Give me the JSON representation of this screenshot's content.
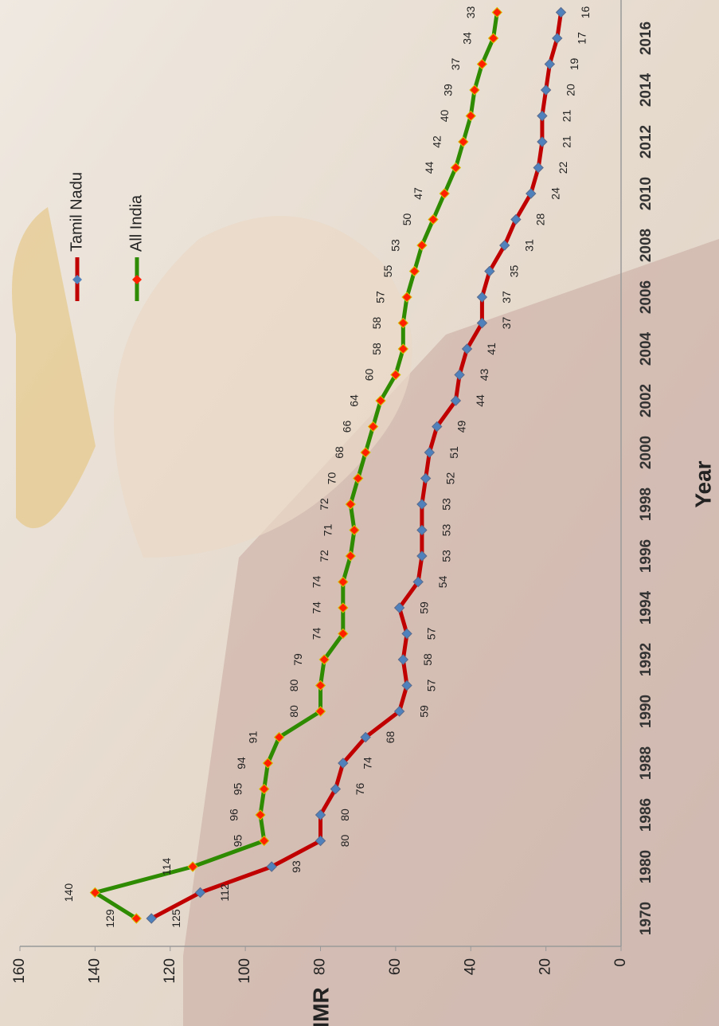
{
  "chart_data": {
    "type": "line",
    "x_label": "Year",
    "y_label": "IMR",
    "categories": [
      "1970",
      null,
      "1980",
      null,
      "1986",
      null,
      "1988",
      null,
      "1990",
      null,
      "1992",
      null,
      "1994",
      null,
      "1996",
      null,
      "1998",
      null,
      "2000",
      null,
      "2002",
      null,
      "2004",
      null,
      "2006",
      null,
      "2008",
      null,
      "2010",
      null,
      "2012",
      null,
      "2014",
      null,
      "2016",
      null
    ],
    "series": [
      {
        "name": "Tamil Nadu",
        "color": "#c00000",
        "marker_color": "#4f81bd",
        "values": [
          125,
          112,
          93,
          80,
          80,
          76,
          74,
          68,
          59,
          57,
          58,
          57,
          59,
          54,
          53,
          53,
          53,
          52,
          51,
          49,
          44,
          43,
          41,
          37,
          37,
          35,
          31,
          28,
          24,
          22,
          21,
          21,
          20,
          19,
          17,
          16
        ]
      },
      {
        "name": "All India",
        "color": "#2e8b00",
        "marker_color": "#ff2000",
        "values": [
          129,
          140,
          114,
          95,
          96,
          95,
          94,
          91,
          80,
          80,
          79,
          74,
          74,
          74,
          72,
          71,
          72,
          70,
          68,
          66,
          64,
          60,
          58,
          58,
          57,
          55,
          53,
          50,
          47,
          44,
          42,
          40,
          39,
          37,
          34,
          33
        ]
      }
    ],
    "ylim": [
      0,
      160
    ],
    "yticks": [
      0,
      20,
      40,
      60,
      80,
      100,
      120,
      140,
      160
    ],
    "legend": "top-right",
    "rotation": -90
  }
}
